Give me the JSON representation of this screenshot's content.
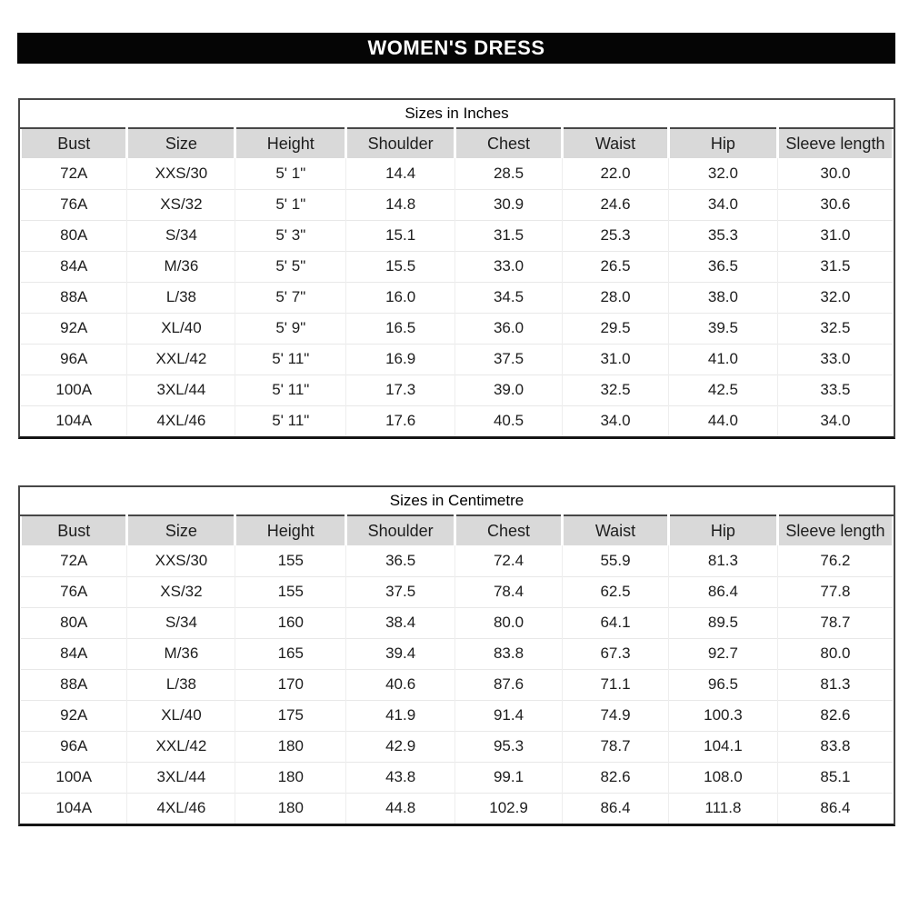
{
  "title_bar": {
    "label": "WOMEN'S DRESS"
  },
  "columns": [
    "Bust",
    "Size",
    "Height",
    "Shoulder",
    "Chest",
    "Waist",
    "Hip",
    "Sleeve length"
  ],
  "tables": [
    {
      "caption": "Sizes in Inches",
      "rows": [
        [
          "72A",
          "XXS/30",
          "5' 1\"",
          "14.4",
          "28.5",
          "22.0",
          "32.0",
          "30.0"
        ],
        [
          "76A",
          "XS/32",
          "5' 1\"",
          "14.8",
          "30.9",
          "24.6",
          "34.0",
          "30.6"
        ],
        [
          "80A",
          "S/34",
          "5' 3\"",
          "15.1",
          "31.5",
          "25.3",
          "35.3",
          "31.0"
        ],
        [
          "84A",
          "M/36",
          "5' 5\"",
          "15.5",
          "33.0",
          "26.5",
          "36.5",
          "31.5"
        ],
        [
          "88A",
          "L/38",
          "5' 7\"",
          "16.0",
          "34.5",
          "28.0",
          "38.0",
          "32.0"
        ],
        [
          "92A",
          "XL/40",
          "5' 9\"",
          "16.5",
          "36.0",
          "29.5",
          "39.5",
          "32.5"
        ],
        [
          "96A",
          "XXL/42",
          "5' 11\"",
          "16.9",
          "37.5",
          "31.0",
          "41.0",
          "33.0"
        ],
        [
          "100A",
          "3XL/44",
          "5' 11\"",
          "17.3",
          "39.0",
          "32.5",
          "42.5",
          "33.5"
        ],
        [
          "104A",
          "4XL/46",
          "5' 11\"",
          "17.6",
          "40.5",
          "34.0",
          "44.0",
          "34.0"
        ]
      ]
    },
    {
      "caption": "Sizes in Centimetre",
      "rows": [
        [
          "72A",
          "XXS/30",
          "155",
          "36.5",
          "72.4",
          "55.9",
          "81.3",
          "76.2"
        ],
        [
          "76A",
          "XS/32",
          "155",
          "37.5",
          "78.4",
          "62.5",
          "86.4",
          "77.8"
        ],
        [
          "80A",
          "S/34",
          "160",
          "38.4",
          "80.0",
          "64.1",
          "89.5",
          "78.7"
        ],
        [
          "84A",
          "M/36",
          "165",
          "39.4",
          "83.8",
          "67.3",
          "92.7",
          "80.0"
        ],
        [
          "88A",
          "L/38",
          "170",
          "40.6",
          "87.6",
          "71.1",
          "96.5",
          "81.3"
        ],
        [
          "92A",
          "XL/40",
          "175",
          "41.9",
          "91.4",
          "74.9",
          "100.3",
          "82.6"
        ],
        [
          "96A",
          "XXL/42",
          "180",
          "42.9",
          "95.3",
          "78.7",
          "104.1",
          "83.8"
        ],
        [
          "100A",
          "3XL/44",
          "180",
          "43.8",
          "99.1",
          "82.6",
          "108.0",
          "85.1"
        ],
        [
          "104A",
          "4XL/46",
          "180",
          "44.8",
          "102.9",
          "86.4",
          "111.8",
          "86.4"
        ]
      ]
    }
  ],
  "colors": {
    "title_bar_bg": "#050505",
    "title_bar_fg": "#ffffff",
    "header_row_bg": "#d9d9d9",
    "outer_border": "#474747",
    "bottom_border": "#141414",
    "grid_line": "#e8e8e8",
    "text": "#1d1d1d"
  }
}
